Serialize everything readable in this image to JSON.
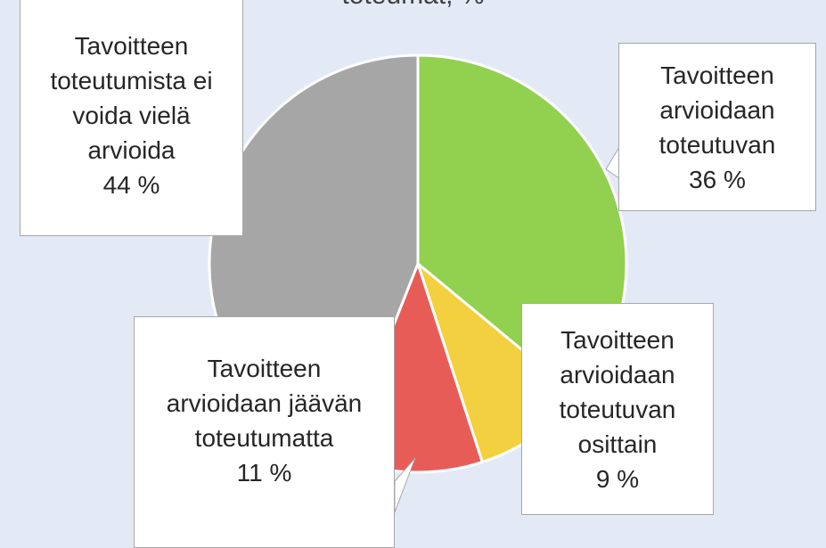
{
  "chart_data": {
    "type": "pie",
    "title": "toteumat, %",
    "categories": [
      "Tavoitteen\narvioidaan\ntoteutuvan",
      "Tavoitteen\narvioidaan\ntoteutuvan\nosittain",
      "Tavoitteen\narvioidaan jäävän\ntoteutumatta",
      "Tavoitteen\ntoteutumista ei\nvoida vielä\narvioida"
    ],
    "values": [
      36,
      9,
      11,
      44
    ],
    "value_labels": [
      "36 %",
      "9 %",
      "11 %",
      "44 %"
    ],
    "colors": [
      "#92d050",
      "#f2d03f",
      "#e85c58",
      "#a6a6a6"
    ]
  }
}
